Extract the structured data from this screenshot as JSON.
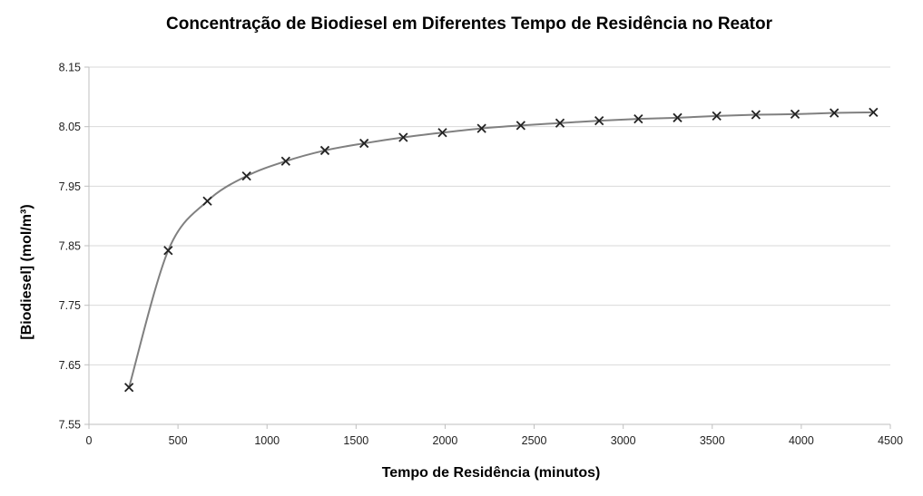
{
  "chart_data": {
    "type": "scatter",
    "title": "Concentração de Biodiesel em Diferentes Tempo de Residência no Reator",
    "xlabel": "Tempo de Residência (minutos)",
    "ylabel": "[Biodiesel] (mol/m³)",
    "xlim": [
      0,
      4500
    ],
    "ylim": [
      7.55,
      8.15
    ],
    "x_ticks": [
      "0",
      "500",
      "1000",
      "1500",
      "2000",
      "2500",
      "3000",
      "3500",
      "4000",
      "4500"
    ],
    "y_ticks": [
      "7.55",
      "7.65",
      "7.75",
      "7.85",
      "7.95",
      "8.05",
      "8.15"
    ],
    "grid": "horizontal",
    "legend": "none",
    "marker": "x",
    "smooth_line": true,
    "series": [
      {
        "color": "#808080",
        "marker_color": "#222222",
        "x": [
          225,
          445,
          665,
          885,
          1105,
          1325,
          1545,
          1765,
          1985,
          2205,
          2425,
          2645,
          2865,
          3085,
          3305,
          3525,
          3745,
          3965,
          4185,
          4405
        ],
        "y": [
          7.612,
          7.842,
          7.925,
          7.967,
          7.992,
          8.01,
          8.022,
          8.032,
          8.04,
          8.047,
          8.052,
          8.056,
          8.06,
          8.063,
          8.065,
          8.068,
          8.07,
          8.071,
          8.073,
          8.074
        ]
      }
    ]
  }
}
